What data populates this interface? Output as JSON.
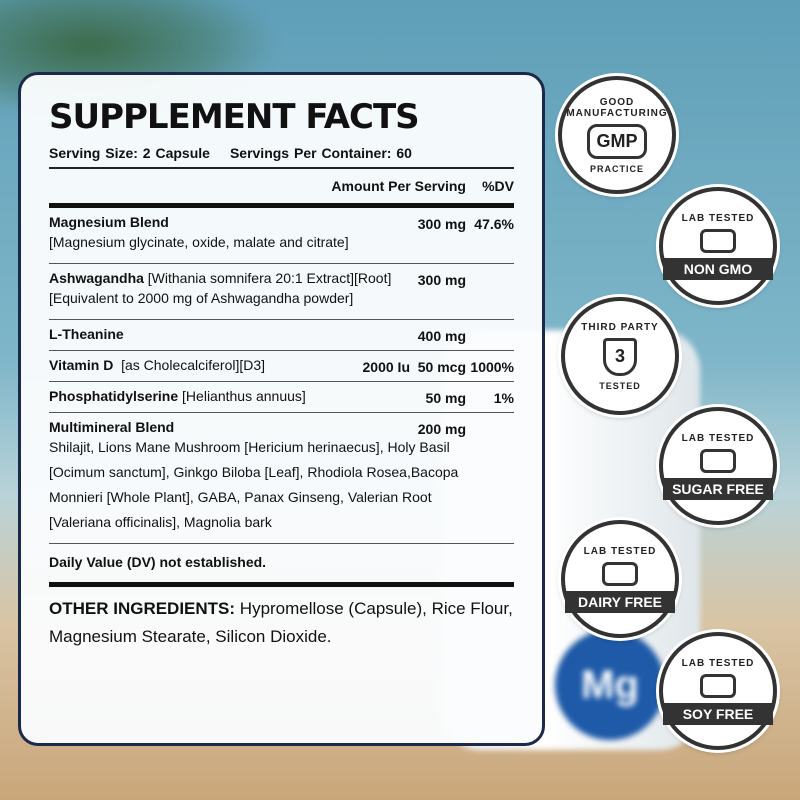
{
  "panel": {
    "title": "SUPPLEMENT FACTS",
    "serving_size": "Serving Size: 2 Capsule",
    "servings_per_container": "Servings Per Container: 60",
    "col_amount": "Amount Per Serving",
    "col_dv": "%DV",
    "rows": [
      {
        "name": "Magnesium Blend",
        "detail": "",
        "sub": "[Magnesium glycinate, oxide, malate and citrate]",
        "amount": "300 mg",
        "dv": "47.6%"
      },
      {
        "name": "Ashwagandha",
        "detail": " [Withania somnifera 20:1 Extract][Root]",
        "sub": "[Equivalent to 2000 mg of Ashwagandha powder]",
        "amount": "300 mg",
        "dv": ""
      },
      {
        "name": "L-Theanine",
        "detail": "",
        "sub": "",
        "amount": "400 mg",
        "dv": ""
      },
      {
        "name": "Vitamin D",
        "detail": "  [as Cholecalciferol][D3]",
        "iu": "2000 Iu",
        "sub": "",
        "amount": "50 mcg",
        "dv": "1000%"
      },
      {
        "name": "Phosphatidylserine",
        "detail": " [Helianthus annuus]",
        "sub": "",
        "amount": "50 mg",
        "dv": "1%"
      },
      {
        "name": "Multimineral Blend",
        "detail": "",
        "sub": "Shilajit, Lions Mane Mushroom [Hericium herinaecus], Holy Basil [Ocimum sanctum], Ginkgo Biloba [Leaf], Rhodiola Rosea,Bacopa Monnieri [Whole Plant], GABA, Panax Ginseng, Valerian Root [Valeriana officinalis], Magnolia bark",
        "amount": "200 mg",
        "dv": ""
      }
    ],
    "note": "Daily Value (DV) not established.",
    "other_label": "OTHER INGREDIENTS:",
    "other_text": "  Hypromellose (Capsule), Rice Flour, Magnesium Stearate, Silicon Dioxide."
  },
  "bottle_label": "Mg",
  "badges": [
    {
      "top": "GOOD MANUFACTURING",
      "mid": "GMP",
      "bottom": "PRACTICE",
      "icon": "gmp-icon"
    },
    {
      "top": "LAB TESTED",
      "band": "NON GMO",
      "icon": "sunrise-field-icon"
    },
    {
      "top": "THIRD PARTY",
      "mid": "3",
      "bottom": "TESTED",
      "icon": "shield-icon"
    },
    {
      "top": "LAB TESTED",
      "band": "SUGAR FREE",
      "icon": "sugar-cube-icon"
    },
    {
      "top": "LAB TESTED",
      "band": "DAIRY FREE",
      "icon": "milk-bottle-icon"
    },
    {
      "top": "LAB TESTED",
      "band": "SOY FREE",
      "icon": "soybean-icon"
    }
  ]
}
